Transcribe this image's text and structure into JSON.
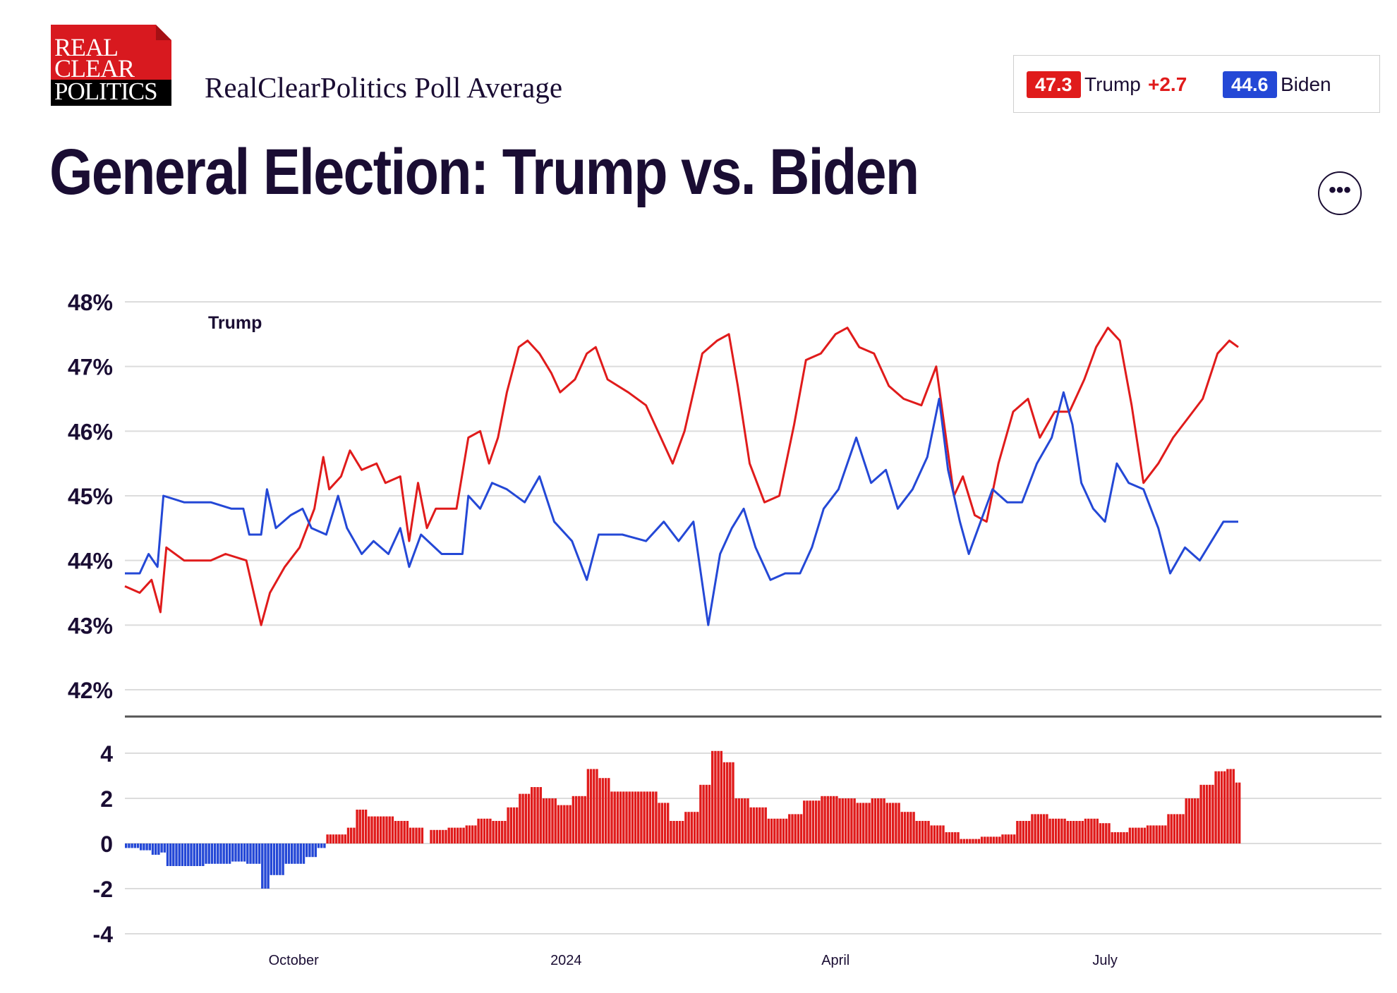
{
  "header": {
    "logo_lines": [
      "REAL",
      "CLEAR",
      "POLITICS"
    ],
    "subtitle": "RealClearPolitics Poll Average",
    "title": "General Election: Trump vs. Biden",
    "more_button": "•••"
  },
  "legend": {
    "trump_value": "47.3",
    "trump_name": "Trump",
    "trump_spread": "+2.7",
    "biden_value": "44.6",
    "biden_name": "Biden"
  },
  "colors": {
    "trump": "#e01b1b",
    "biden": "#2448d6",
    "grid": "#dcdcdc",
    "text": "#1a0d33"
  },
  "chart_data": [
    {
      "type": "line",
      "title": "",
      "series_label": "Trump",
      "ylim": [
        42,
        48
      ],
      "yticks": [
        48,
        47,
        46,
        45,
        44,
        43,
        42
      ],
      "ytick_labels": [
        "48%",
        "47%",
        "46%",
        "45%",
        "44%",
        "43%",
        "42%"
      ],
      "xlim": [
        "2023-08-05",
        "2024-08-15"
      ],
      "xticks": [
        {
          "label": "October",
          "date": "2023-10-01"
        },
        {
          "label": "2024",
          "date": "2024-01-01"
        },
        {
          "label": "April",
          "date": "2024-04-01"
        },
        {
          "label": "July",
          "date": "2024-07-01"
        }
      ],
      "grid": true,
      "series": [
        {
          "name": "Trump",
          "color": "#e01b1b",
          "points": [
            [
              "2023-08-05",
              43.6
            ],
            [
              "2023-08-10",
              43.5
            ],
            [
              "2023-08-14",
              43.7
            ],
            [
              "2023-08-17",
              43.2
            ],
            [
              "2023-08-19",
              44.2
            ],
            [
              "2023-08-25",
              44.0
            ],
            [
              "2023-09-03",
              44.0
            ],
            [
              "2023-09-08",
              44.1
            ],
            [
              "2023-09-15",
              44.0
            ],
            [
              "2023-09-20",
              43.0
            ],
            [
              "2023-09-23",
              43.5
            ],
            [
              "2023-09-28",
              43.9
            ],
            [
              "2023-10-03",
              44.2
            ],
            [
              "2023-10-08",
              44.8
            ],
            [
              "2023-10-11",
              45.6
            ],
            [
              "2023-10-13",
              45.1
            ],
            [
              "2023-10-17",
              45.3
            ],
            [
              "2023-10-20",
              45.7
            ],
            [
              "2023-10-24",
              45.4
            ],
            [
              "2023-10-29",
              45.5
            ],
            [
              "2023-11-01",
              45.2
            ],
            [
              "2023-11-06",
              45.3
            ],
            [
              "2023-11-09",
              44.3
            ],
            [
              "2023-11-12",
              45.2
            ],
            [
              "2023-11-15",
              44.5
            ],
            [
              "2023-11-18",
              44.8
            ],
            [
              "2023-11-25",
              44.8
            ],
            [
              "2023-11-29",
              45.9
            ],
            [
              "2023-12-03",
              46.0
            ],
            [
              "2023-12-06",
              45.5
            ],
            [
              "2023-12-09",
              45.9
            ],
            [
              "2023-12-12",
              46.6
            ],
            [
              "2023-12-16",
              47.3
            ],
            [
              "2023-12-19",
              47.4
            ],
            [
              "2023-12-23",
              47.2
            ],
            [
              "2023-12-27",
              46.9
            ],
            [
              "2023-12-30",
              46.6
            ],
            [
              "2024-01-04",
              46.8
            ],
            [
              "2024-01-08",
              47.2
            ],
            [
              "2024-01-11",
              47.3
            ],
            [
              "2024-01-15",
              46.8
            ],
            [
              "2024-01-22",
              46.6
            ],
            [
              "2024-01-28",
              46.4
            ],
            [
              "2024-02-02",
              45.9
            ],
            [
              "2024-02-06",
              45.5
            ],
            [
              "2024-02-10",
              46.0
            ],
            [
              "2024-02-16",
              47.2
            ],
            [
              "2024-02-21",
              47.4
            ],
            [
              "2024-02-25",
              47.5
            ],
            [
              "2024-02-28",
              46.7
            ],
            [
              "2024-03-03",
              45.5
            ],
            [
              "2024-03-08",
              44.9
            ],
            [
              "2024-03-13",
              45.0
            ],
            [
              "2024-03-18",
              46.1
            ],
            [
              "2024-03-22",
              47.1
            ],
            [
              "2024-03-27",
              47.2
            ],
            [
              "2024-04-01",
              47.5
            ],
            [
              "2024-04-05",
              47.6
            ],
            [
              "2024-04-09",
              47.3
            ],
            [
              "2024-04-14",
              47.2
            ],
            [
              "2024-04-19",
              46.7
            ],
            [
              "2024-04-24",
              46.5
            ],
            [
              "2024-04-30",
              46.4
            ],
            [
              "2024-05-05",
              47.0
            ],
            [
              "2024-05-08",
              46.0
            ],
            [
              "2024-05-11",
              45.0
            ],
            [
              "2024-05-14",
              45.3
            ],
            [
              "2024-05-18",
              44.7
            ],
            [
              "2024-05-22",
              44.6
            ],
            [
              "2024-05-26",
              45.5
            ],
            [
              "2024-05-31",
              46.3
            ],
            [
              "2024-06-05",
              46.5
            ],
            [
              "2024-06-09",
              45.9
            ],
            [
              "2024-06-14",
              46.3
            ],
            [
              "2024-06-19",
              46.3
            ],
            [
              "2024-06-24",
              46.8
            ],
            [
              "2024-06-28",
              47.3
            ],
            [
              "2024-07-02",
              47.6
            ],
            [
              "2024-07-06",
              47.4
            ],
            [
              "2024-07-10",
              46.4
            ],
            [
              "2024-07-14",
              45.2
            ],
            [
              "2024-07-19",
              45.5
            ],
            [
              "2024-07-24",
              45.9
            ],
            [
              "2024-07-29",
              46.2
            ],
            [
              "2024-08-03",
              46.5
            ],
            [
              "2024-08-08",
              47.2
            ],
            [
              "2024-08-12",
              47.4
            ],
            [
              "2024-08-15",
              47.3
            ]
          ]
        },
        {
          "name": "Biden",
          "color": "#2448d6",
          "points": [
            [
              "2023-08-05",
              43.8
            ],
            [
              "2023-08-10",
              43.8
            ],
            [
              "2023-08-13",
              44.1
            ],
            [
              "2023-08-16",
              43.9
            ],
            [
              "2023-08-18",
              45.0
            ],
            [
              "2023-08-25",
              44.9
            ],
            [
              "2023-09-03",
              44.9
            ],
            [
              "2023-09-10",
              44.8
            ],
            [
              "2023-09-14",
              44.8
            ],
            [
              "2023-09-16",
              44.4
            ],
            [
              "2023-09-20",
              44.4
            ],
            [
              "2023-09-22",
              45.1
            ],
            [
              "2023-09-25",
              44.5
            ],
            [
              "2023-09-30",
              44.7
            ],
            [
              "2023-10-04",
              44.8
            ],
            [
              "2023-10-07",
              44.5
            ],
            [
              "2023-10-12",
              44.4
            ],
            [
              "2023-10-16",
              45.0
            ],
            [
              "2023-10-19",
              44.5
            ],
            [
              "2023-10-24",
              44.1
            ],
            [
              "2023-10-28",
              44.3
            ],
            [
              "2023-11-02",
              44.1
            ],
            [
              "2023-11-06",
              44.5
            ],
            [
              "2023-11-09",
              43.9
            ],
            [
              "2023-11-13",
              44.4
            ],
            [
              "2023-11-20",
              44.1
            ],
            [
              "2023-11-27",
              44.1
            ],
            [
              "2023-11-29",
              45.0
            ],
            [
              "2023-12-03",
              44.8
            ],
            [
              "2023-12-07",
              45.2
            ],
            [
              "2023-12-12",
              45.1
            ],
            [
              "2023-12-18",
              44.9
            ],
            [
              "2023-12-23",
              45.3
            ],
            [
              "2023-12-28",
              44.6
            ],
            [
              "2024-01-03",
              44.3
            ],
            [
              "2024-01-08",
              43.7
            ],
            [
              "2024-01-12",
              44.4
            ],
            [
              "2024-01-20",
              44.4
            ],
            [
              "2024-01-28",
              44.3
            ],
            [
              "2024-02-03",
              44.6
            ],
            [
              "2024-02-08",
              44.3
            ],
            [
              "2024-02-13",
              44.6
            ],
            [
              "2024-02-18",
              43.0
            ],
            [
              "2024-02-22",
              44.1
            ],
            [
              "2024-02-26",
              44.5
            ],
            [
              "2024-03-01",
              44.8
            ],
            [
              "2024-03-05",
              44.2
            ],
            [
              "2024-03-10",
              43.7
            ],
            [
              "2024-03-15",
              43.8
            ],
            [
              "2024-03-20",
              43.8
            ],
            [
              "2024-03-24",
              44.2
            ],
            [
              "2024-03-28",
              44.8
            ],
            [
              "2024-04-02",
              45.1
            ],
            [
              "2024-04-08",
              45.9
            ],
            [
              "2024-04-13",
              45.2
            ],
            [
              "2024-04-18",
              45.4
            ],
            [
              "2024-04-22",
              44.8
            ],
            [
              "2024-04-27",
              45.1
            ],
            [
              "2024-05-02",
              45.6
            ],
            [
              "2024-05-06",
              46.5
            ],
            [
              "2024-05-09",
              45.4
            ],
            [
              "2024-05-13",
              44.6
            ],
            [
              "2024-05-16",
              44.1
            ],
            [
              "2024-05-20",
              44.6
            ],
            [
              "2024-05-24",
              45.1
            ],
            [
              "2024-05-29",
              44.9
            ],
            [
              "2024-06-03",
              44.9
            ],
            [
              "2024-06-08",
              45.5
            ],
            [
              "2024-06-13",
              45.9
            ],
            [
              "2024-06-17",
              46.6
            ],
            [
              "2024-06-20",
              46.1
            ],
            [
              "2024-06-23",
              45.2
            ],
            [
              "2024-06-27",
              44.8
            ],
            [
              "2024-07-01",
              44.6
            ],
            [
              "2024-07-05",
              45.5
            ],
            [
              "2024-07-09",
              45.2
            ],
            [
              "2024-07-14",
              45.1
            ],
            [
              "2024-07-19",
              44.5
            ],
            [
              "2024-07-23",
              43.8
            ],
            [
              "2024-07-28",
              44.2
            ],
            [
              "2024-08-02",
              44.0
            ],
            [
              "2024-08-06",
              44.3
            ],
            [
              "2024-08-10",
              44.6
            ],
            [
              "2024-08-15",
              44.6
            ]
          ]
        }
      ]
    },
    {
      "type": "bar",
      "title": "",
      "ylim": [
        -4,
        4
      ],
      "yticks": [
        4,
        2,
        0,
        -2,
        -4
      ],
      "ytick_labels": [
        "4",
        "2",
        "0",
        "-2",
        "-4"
      ],
      "xlim": [
        "2023-08-05",
        "2024-08-15"
      ],
      "grid": true,
      "positive_color": "#e01b1b",
      "negative_color": "#2448d6",
      "spread": [
        [
          "2023-08-05",
          -0.2
        ],
        [
          "2023-08-10",
          -0.3
        ],
        [
          "2023-08-14",
          -0.5
        ],
        [
          "2023-08-17",
          -0.4
        ],
        [
          "2023-08-19",
          -1.0
        ],
        [
          "2023-09-01",
          -0.9
        ],
        [
          "2023-09-10",
          -0.8
        ],
        [
          "2023-09-15",
          -0.9
        ],
        [
          "2023-09-20",
          -2.0
        ],
        [
          "2023-09-23",
          -1.4
        ],
        [
          "2023-09-28",
          -0.9
        ],
        [
          "2023-10-05",
          -0.6
        ],
        [
          "2023-10-09",
          -0.2
        ],
        [
          "2023-10-12",
          0.4
        ],
        [
          "2023-10-19",
          0.7
        ],
        [
          "2023-10-22",
          1.5
        ],
        [
          "2023-10-26",
          1.2
        ],
        [
          "2023-11-04",
          1.0
        ],
        [
          "2023-11-09",
          0.7
        ],
        [
          "2023-11-14",
          0.0
        ],
        [
          "2023-11-16",
          0.6
        ],
        [
          "2023-11-22",
          0.7
        ],
        [
          "2023-11-28",
          0.8
        ],
        [
          "2023-12-02",
          1.1
        ],
        [
          "2023-12-07",
          1.0
        ],
        [
          "2023-12-12",
          1.6
        ],
        [
          "2023-12-16",
          2.2
        ],
        [
          "2023-12-20",
          2.5
        ],
        [
          "2023-12-24",
          2.0
        ],
        [
          "2023-12-29",
          1.7
        ],
        [
          "2024-01-03",
          2.1
        ],
        [
          "2024-01-08",
          3.3
        ],
        [
          "2024-01-12",
          2.9
        ],
        [
          "2024-01-16",
          2.3
        ],
        [
          "2024-01-28",
          2.3
        ],
        [
          "2024-02-01",
          1.8
        ],
        [
          "2024-02-05",
          1.0
        ],
        [
          "2024-02-10",
          1.4
        ],
        [
          "2024-02-15",
          2.6
        ],
        [
          "2024-02-19",
          4.1
        ],
        [
          "2024-02-23",
          3.6
        ],
        [
          "2024-02-27",
          2.0
        ],
        [
          "2024-03-03",
          1.6
        ],
        [
          "2024-03-09",
          1.1
        ],
        [
          "2024-03-16",
          1.3
        ],
        [
          "2024-03-21",
          1.9
        ],
        [
          "2024-03-27",
          2.1
        ],
        [
          "2024-04-02",
          2.0
        ],
        [
          "2024-04-08",
          1.8
        ],
        [
          "2024-04-13",
          2.0
        ],
        [
          "2024-04-18",
          1.8
        ],
        [
          "2024-04-23",
          1.4
        ],
        [
          "2024-04-28",
          1.0
        ],
        [
          "2024-05-03",
          0.8
        ],
        [
          "2024-05-08",
          0.5
        ],
        [
          "2024-05-13",
          0.2
        ],
        [
          "2024-05-20",
          0.3
        ],
        [
          "2024-05-27",
          0.4
        ],
        [
          "2024-06-01",
          1.0
        ],
        [
          "2024-06-06",
          1.3
        ],
        [
          "2024-06-12",
          1.1
        ],
        [
          "2024-06-18",
          1.0
        ],
        [
          "2024-06-24",
          1.1
        ],
        [
          "2024-06-29",
          0.9
        ],
        [
          "2024-07-03",
          0.5
        ],
        [
          "2024-07-09",
          0.7
        ],
        [
          "2024-07-15",
          0.8
        ],
        [
          "2024-07-22",
          1.3
        ],
        [
          "2024-07-28",
          2.0
        ],
        [
          "2024-08-02",
          2.6
        ],
        [
          "2024-08-07",
          3.2
        ],
        [
          "2024-08-11",
          3.3
        ],
        [
          "2024-08-14",
          2.7
        ],
        [
          "2024-08-15",
          2.7
        ]
      ]
    }
  ]
}
